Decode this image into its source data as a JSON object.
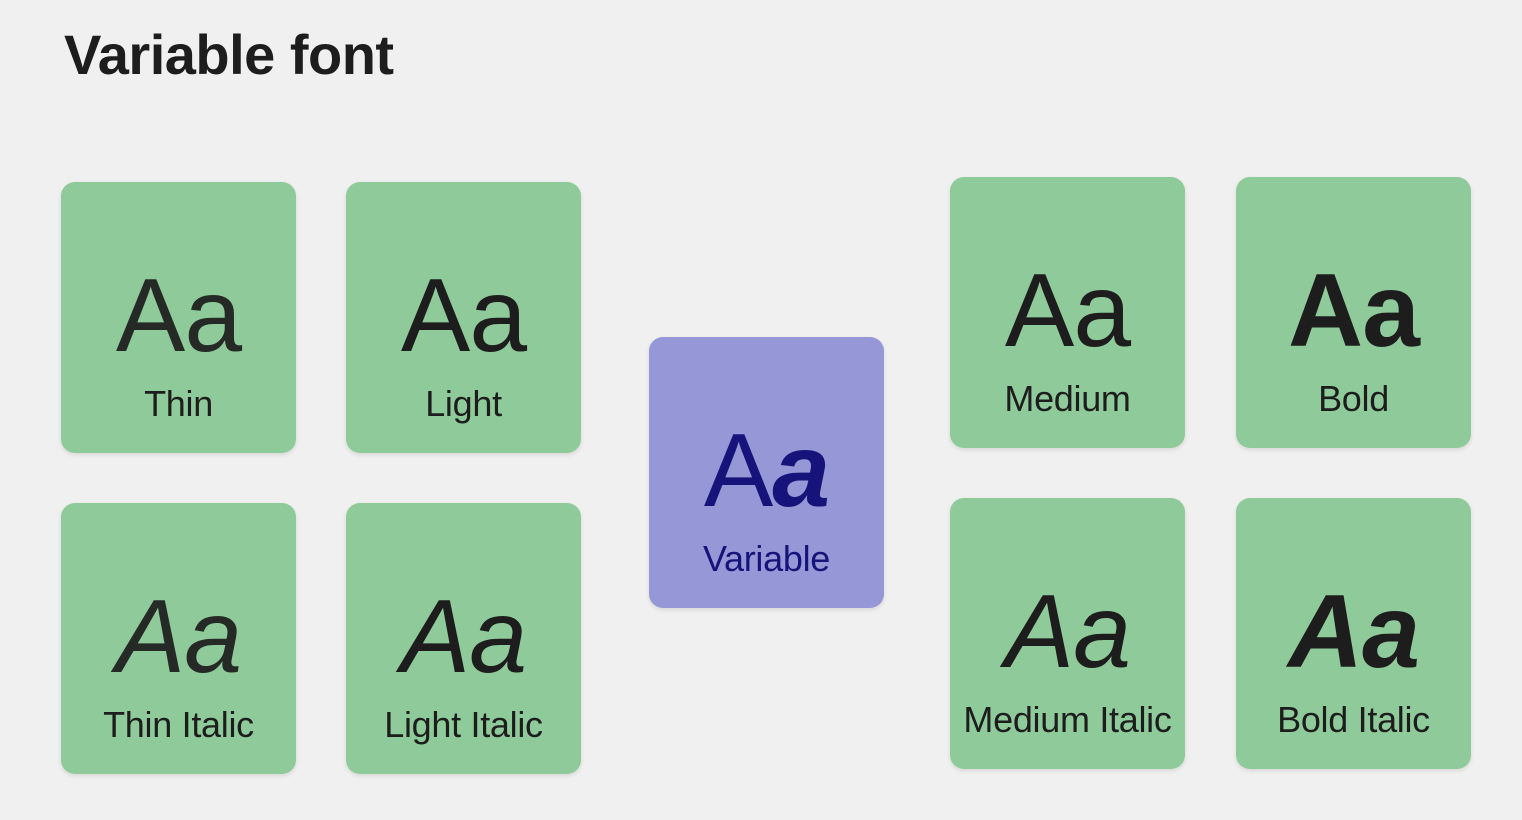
{
  "page": {
    "title": "Variable font"
  },
  "sample_text": "Aa",
  "variable_card": {
    "sample_a": "A",
    "sample_b": "a",
    "label": "Variable"
  },
  "cards": [
    {
      "label": "Thin",
      "weight": "thin",
      "italic": false
    },
    {
      "label": "Light",
      "weight": "light",
      "italic": false
    },
    {
      "label": "Medium",
      "weight": "medium",
      "italic": false
    },
    {
      "label": "Bold",
      "weight": "bold",
      "italic": false
    },
    {
      "label": "Thin Italic",
      "weight": "thin",
      "italic": true
    },
    {
      "label": "Light Italic",
      "weight": "light",
      "italic": true
    },
    {
      "label": "Medium Italic",
      "weight": "medium",
      "italic": true
    },
    {
      "label": "Bold Italic",
      "weight": "bold",
      "italic": true
    }
  ],
  "colors": {
    "background": "#eff0ef",
    "card_green": "#8fcb9a",
    "card_purple": "#9597d6",
    "variable_text": "#16147a",
    "text_dark": "#1d1d1d"
  }
}
